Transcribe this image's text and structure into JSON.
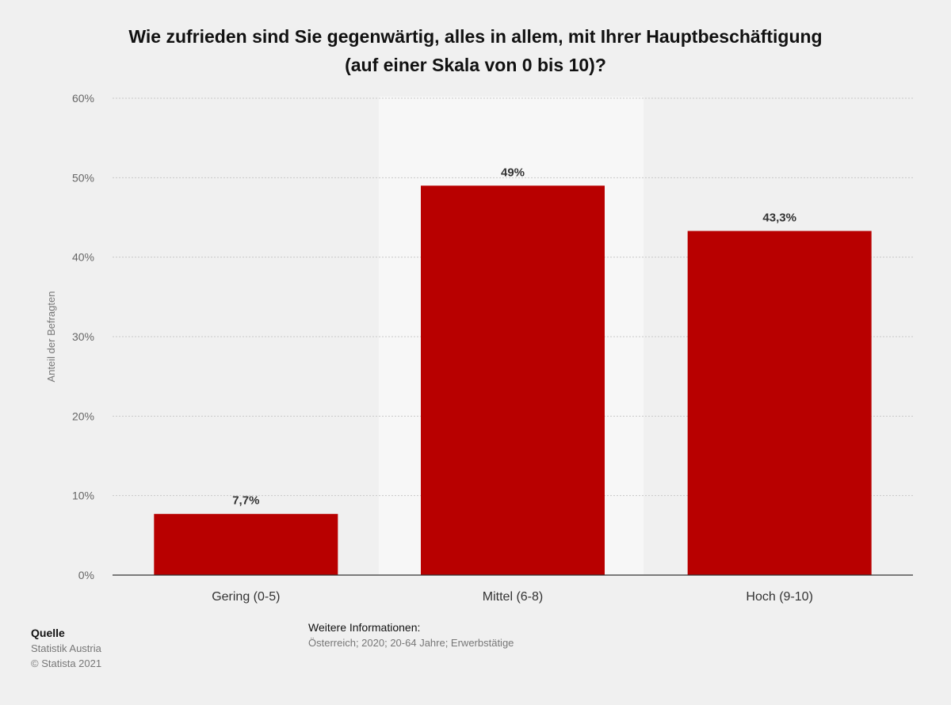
{
  "title_line1": "Wie zufrieden sind Sie gegenwärtig, alles in allem, mit Ihrer Hauptbeschäftigung",
  "title_line2": "(auf einer Skala von 0 bis 10)?",
  "chart_data": {
    "type": "bar",
    "categories": [
      "Gering (0-5)",
      "Mittel (6-8)",
      "Hoch (9-10)"
    ],
    "values": [
      7.7,
      49,
      43.3
    ],
    "value_labels": [
      "7,7%",
      "49%",
      "43,3%"
    ],
    "ylabel": "Anteil der Befragten",
    "xlabel": "",
    "ylim": [
      0,
      60
    ],
    "yticks": [
      0,
      10,
      20,
      30,
      40,
      50,
      60
    ],
    "ytick_labels": [
      "0%",
      "10%",
      "20%",
      "30%",
      "40%",
      "50%",
      "60%"
    ],
    "grid": true,
    "bar_color": "#b80000"
  },
  "footer": {
    "source_heading": "Quelle",
    "source_name": "Statistik Austria",
    "copyright": "© Statista 2021",
    "info_heading": "Weitere Informationen:",
    "info_text": "Österreich; 2020; 20-64 Jahre; Erwerbstätige"
  }
}
